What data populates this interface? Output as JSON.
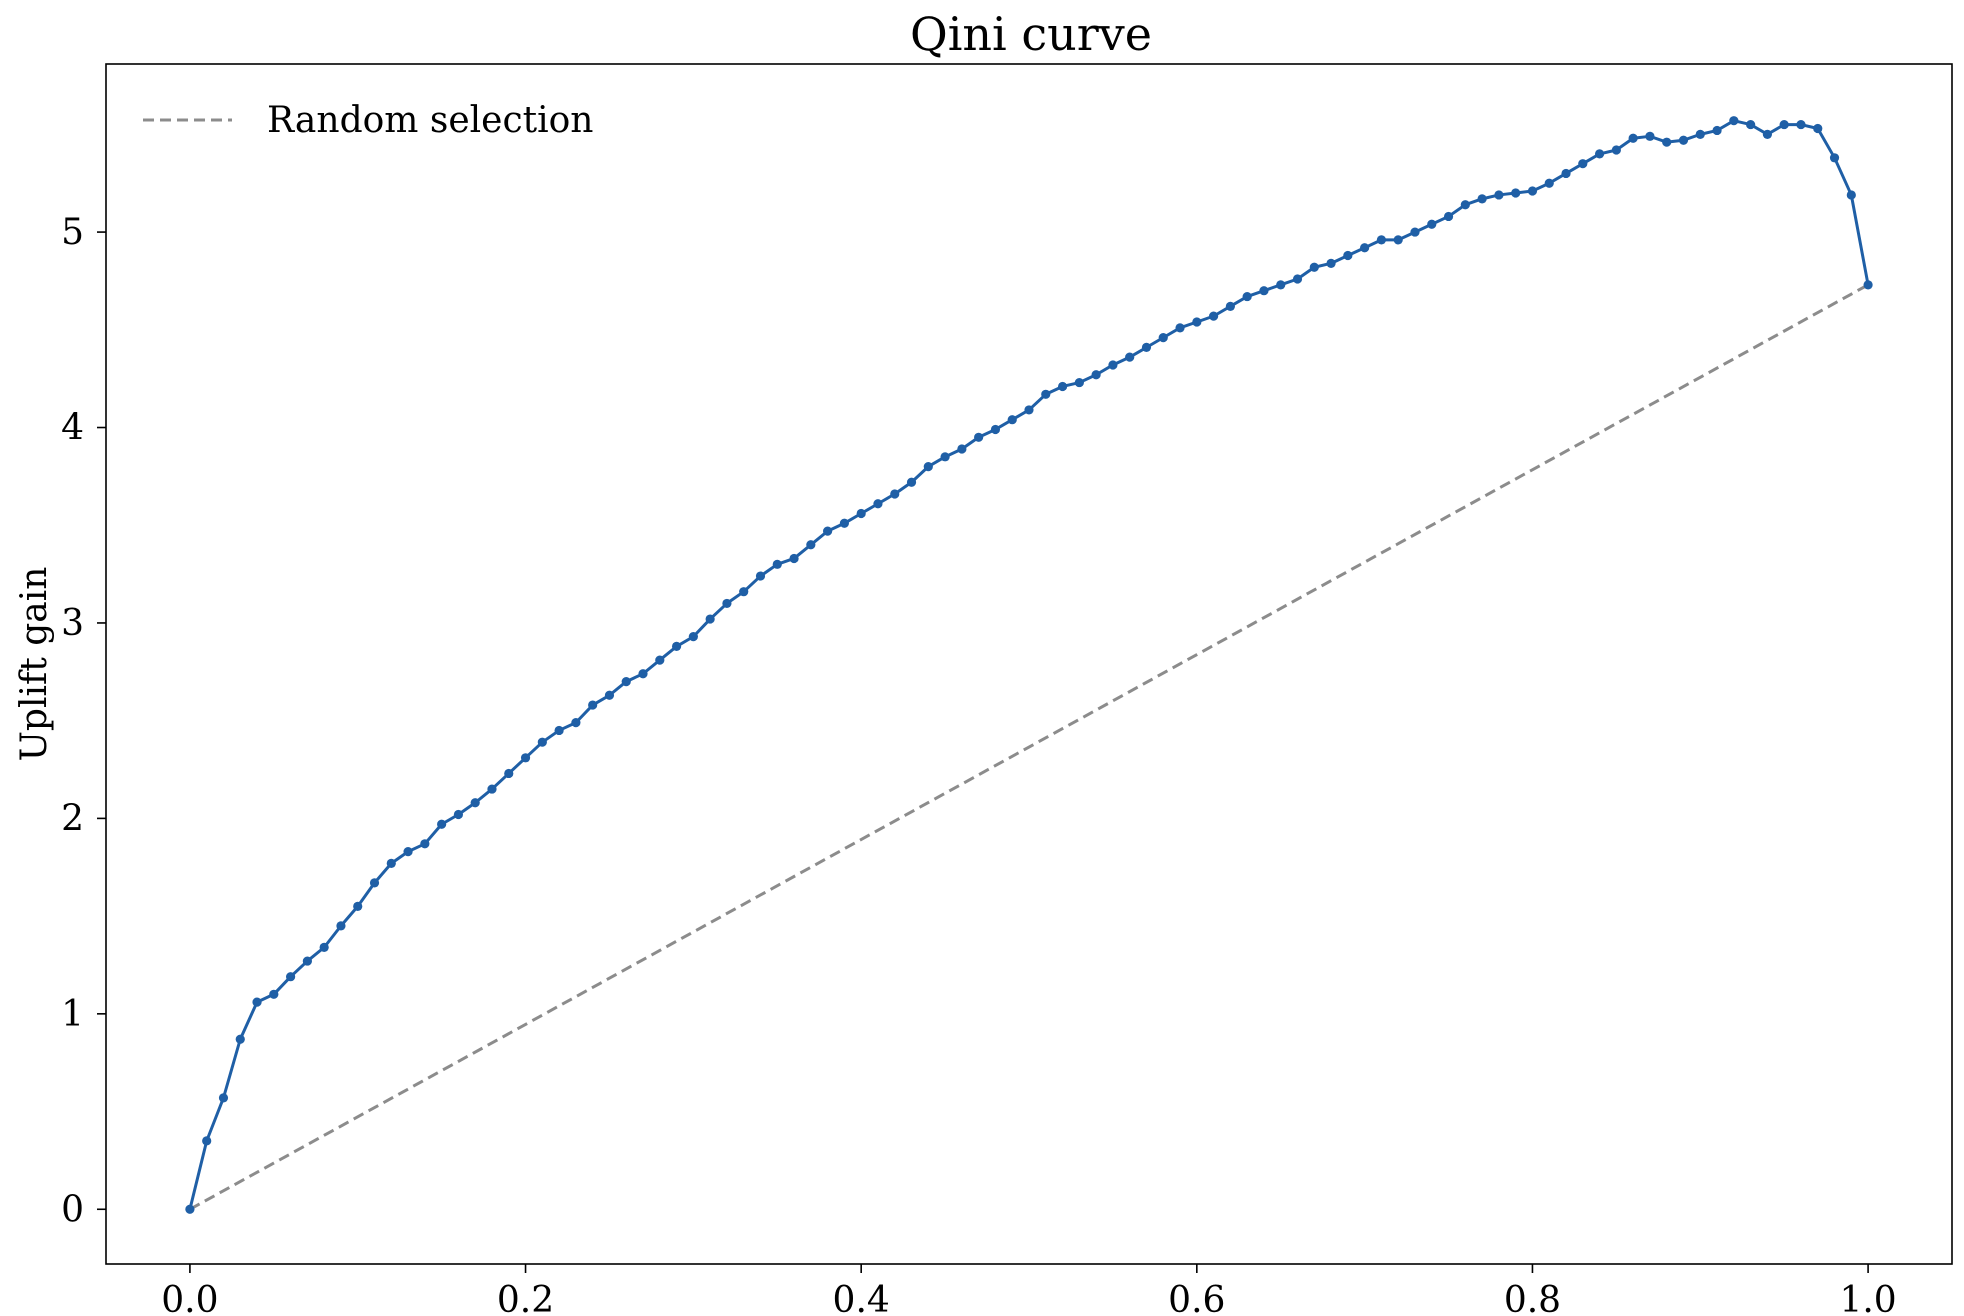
{
  "chart_data": {
    "type": "line",
    "title": "Qini curve",
    "xlabel": "",
    "ylabel": "Uplift gain",
    "xlim": [
      -0.05,
      1.05
    ],
    "ylim": [
      -0.28,
      5.86
    ],
    "xticks": [
      0.0,
      0.2,
      0.4,
      0.6,
      0.8,
      1.0
    ],
    "xtick_labels": [
      "0.0",
      "0.2",
      "0.4",
      "0.6",
      "0.8",
      "1.0"
    ],
    "yticks": [
      0,
      1,
      2,
      3,
      4,
      5
    ],
    "ytick_labels": [
      "0",
      "1",
      "2",
      "3",
      "4",
      "5"
    ],
    "grid": false,
    "legend": {
      "location": "upper left",
      "entries": [
        "Random selection"
      ]
    },
    "series": [
      {
        "color": "#1f5fa6",
        "style": "solid",
        "marker": "dot",
        "x": [
          0.0,
          0.01,
          0.02,
          0.03,
          0.04,
          0.05,
          0.06,
          0.07,
          0.08,
          0.09,
          0.1,
          0.11,
          0.12,
          0.13,
          0.14,
          0.15,
          0.16,
          0.17,
          0.18,
          0.19,
          0.2,
          0.21,
          0.22,
          0.23,
          0.24,
          0.25,
          0.26,
          0.27,
          0.28,
          0.29,
          0.3,
          0.31,
          0.32,
          0.33,
          0.34,
          0.35,
          0.36,
          0.37,
          0.38,
          0.39,
          0.4,
          0.41,
          0.42,
          0.43,
          0.44,
          0.45,
          0.46,
          0.47,
          0.48,
          0.49,
          0.5,
          0.51,
          0.52,
          0.53,
          0.54,
          0.55,
          0.56,
          0.57,
          0.58,
          0.59,
          0.6,
          0.61,
          0.62,
          0.63,
          0.64,
          0.65,
          0.66,
          0.67,
          0.68,
          0.69,
          0.7,
          0.71,
          0.72,
          0.73,
          0.74,
          0.75,
          0.76,
          0.77,
          0.78,
          0.79,
          0.8,
          0.81,
          0.82,
          0.83,
          0.84,
          0.85,
          0.86,
          0.87,
          0.88,
          0.89,
          0.9,
          0.91,
          0.92,
          0.93,
          0.94,
          0.95,
          0.96,
          0.97,
          0.98,
          0.99,
          1.0
        ],
        "y": [
          0.0,
          0.35,
          0.57,
          0.87,
          1.06,
          1.1,
          1.19,
          1.27,
          1.34,
          1.45,
          1.55,
          1.67,
          1.77,
          1.83,
          1.87,
          1.97,
          2.02,
          2.08,
          2.15,
          2.23,
          2.31,
          2.39,
          2.45,
          2.49,
          2.58,
          2.63,
          2.7,
          2.74,
          2.81,
          2.88,
          2.93,
          3.02,
          3.1,
          3.16,
          3.24,
          3.3,
          3.33,
          3.4,
          3.47,
          3.51,
          3.56,
          3.61,
          3.66,
          3.72,
          3.8,
          3.85,
          3.89,
          3.95,
          3.99,
          4.04,
          4.09,
          4.17,
          4.21,
          4.23,
          4.27,
          4.32,
          4.36,
          4.41,
          4.46,
          4.51,
          4.54,
          4.57,
          4.62,
          4.67,
          4.7,
          4.73,
          4.76,
          4.82,
          4.84,
          4.88,
          4.92,
          4.96,
          4.96,
          5.0,
          5.04,
          5.08,
          5.14,
          5.17,
          5.19,
          5.2,
          5.21,
          5.25,
          5.3,
          5.35,
          5.4,
          5.42,
          5.48,
          5.49,
          5.46,
          5.47,
          5.5,
          5.52,
          5.57,
          5.55,
          5.5,
          5.55,
          5.55,
          5.53,
          5.38,
          5.19,
          4.73
        ]
      },
      {
        "name": "Random selection",
        "color": "#8c8c8c",
        "style": "dashed",
        "marker": "none",
        "x": [
          0.0,
          1.0
        ],
        "y": [
          0.0,
          4.73
        ]
      }
    ]
  }
}
